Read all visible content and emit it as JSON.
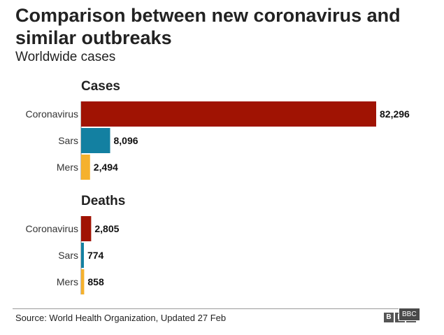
{
  "header": {
    "title": "Comparison between new coronavirus and similar outbreaks",
    "subtitle": "Worldwide cases"
  },
  "colors": {
    "coronavirus": "#a01303",
    "sars": "#1380a1",
    "mers": "#f5b12e",
    "axis": "#7f7f7f"
  },
  "chart_data": [
    {
      "type": "bar",
      "orientation": "horizontal",
      "title": "Cases",
      "categories": [
        "Coronavirus",
        "Sars",
        "Mers"
      ],
      "values": [
        82296,
        8096,
        2494
      ],
      "value_labels": [
        "82,296",
        "8,096",
        "2,494"
      ],
      "xlim": [
        0,
        82296
      ]
    },
    {
      "type": "bar",
      "orientation": "horizontal",
      "title": "Deaths",
      "categories": [
        "Coronavirus",
        "Sars",
        "Mers"
      ],
      "values": [
        2805,
        774,
        858
      ],
      "value_labels": [
        "2,805",
        "774",
        "858"
      ],
      "xlim": [
        0,
        82296
      ]
    }
  ],
  "footer": {
    "source": "Source: World Health Organization, Updated 27 Feb",
    "logo_letters": [
      "B",
      "B",
      "C"
    ],
    "logo_label": "BBC"
  }
}
